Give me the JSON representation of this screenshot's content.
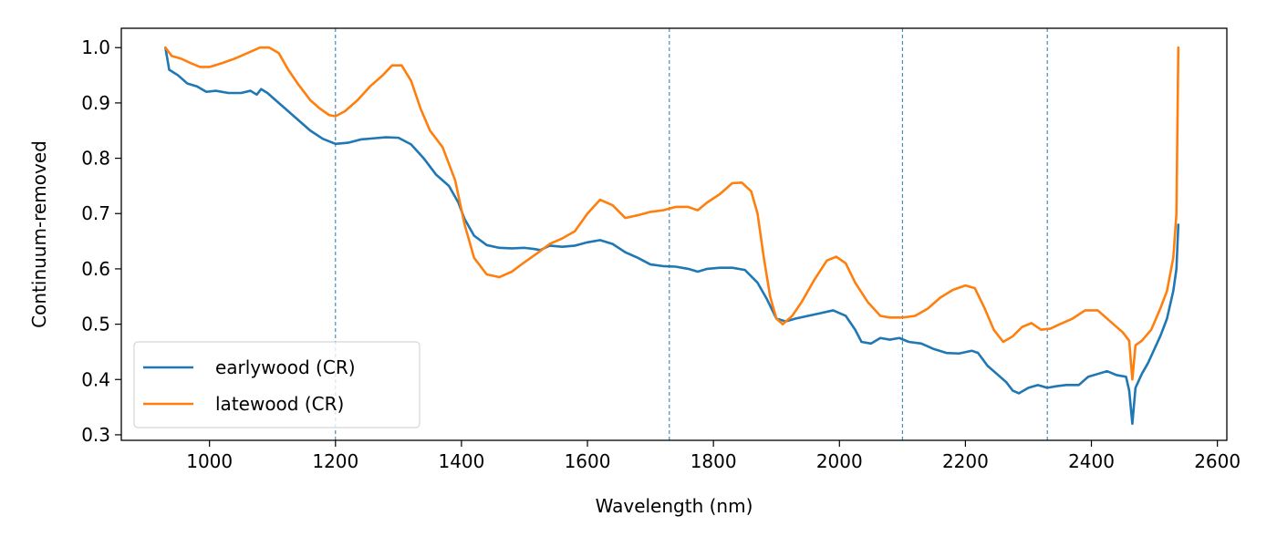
{
  "chart_data": {
    "type": "line",
    "title": "",
    "xlabel": "Wavelength (nm)",
    "ylabel": "Continuum-removed",
    "xlim": [
      860,
      2615
    ],
    "ylim": [
      0.29,
      1.035
    ],
    "xticks": [
      1000,
      1200,
      1400,
      1600,
      1800,
      2000,
      2200,
      2400,
      2600
    ],
    "yticks": [
      0.3,
      0.4,
      0.5,
      0.6,
      0.7,
      0.8,
      0.9,
      1.0
    ],
    "xtick_labels": [
      "1000",
      "1200",
      "1400",
      "1600",
      "1800",
      "2000",
      "2200",
      "2400",
      "2600"
    ],
    "ytick_labels": [
      "0.3",
      "0.4",
      "0.5",
      "0.6",
      "0.7",
      "0.8",
      "0.9",
      "1.0"
    ],
    "grid": false,
    "legend_position": "lower-left",
    "vlines": [
      1200,
      1730,
      2100,
      2330
    ],
    "series": [
      {
        "name": "earlywood (CR)",
        "color": "#1f77b4",
        "points": [
          [
            930,
            1.0
          ],
          [
            936,
            0.96
          ],
          [
            950,
            0.95
          ],
          [
            965,
            0.935
          ],
          [
            980,
            0.93
          ],
          [
            995,
            0.92
          ],
          [
            1010,
            0.922
          ],
          [
            1030,
            0.918
          ],
          [
            1050,
            0.918
          ],
          [
            1065,
            0.922
          ],
          [
            1075,
            0.915
          ],
          [
            1082,
            0.925
          ],
          [
            1092,
            0.918
          ],
          [
            1100,
            0.91
          ],
          [
            1120,
            0.89
          ],
          [
            1140,
            0.87
          ],
          [
            1160,
            0.85
          ],
          [
            1180,
            0.835
          ],
          [
            1200,
            0.826
          ],
          [
            1220,
            0.828
          ],
          [
            1240,
            0.834
          ],
          [
            1260,
            0.836
          ],
          [
            1280,
            0.838
          ],
          [
            1300,
            0.837
          ],
          [
            1320,
            0.825
          ],
          [
            1340,
            0.8
          ],
          [
            1360,
            0.77
          ],
          [
            1380,
            0.75
          ],
          [
            1395,
            0.72
          ],
          [
            1405,
            0.69
          ],
          [
            1420,
            0.66
          ],
          [
            1440,
            0.643
          ],
          [
            1460,
            0.638
          ],
          [
            1480,
            0.637
          ],
          [
            1500,
            0.638
          ],
          [
            1515,
            0.636
          ],
          [
            1525,
            0.634
          ],
          [
            1540,
            0.642
          ],
          [
            1560,
            0.64
          ],
          [
            1580,
            0.642
          ],
          [
            1600,
            0.648
          ],
          [
            1620,
            0.652
          ],
          [
            1640,
            0.645
          ],
          [
            1660,
            0.63
          ],
          [
            1680,
            0.62
          ],
          [
            1700,
            0.608
          ],
          [
            1720,
            0.605
          ],
          [
            1740,
            0.604
          ],
          [
            1760,
            0.6
          ],
          [
            1775,
            0.595
          ],
          [
            1790,
            0.6
          ],
          [
            1810,
            0.602
          ],
          [
            1830,
            0.602
          ],
          [
            1850,
            0.598
          ],
          [
            1870,
            0.575
          ],
          [
            1885,
            0.545
          ],
          [
            1900,
            0.51
          ],
          [
            1915,
            0.505
          ],
          [
            1930,
            0.51
          ],
          [
            1950,
            0.515
          ],
          [
            1970,
            0.52
          ],
          [
            1990,
            0.525
          ],
          [
            2010,
            0.515
          ],
          [
            2025,
            0.49
          ],
          [
            2035,
            0.468
          ],
          [
            2050,
            0.465
          ],
          [
            2065,
            0.475
          ],
          [
            2080,
            0.472
          ],
          [
            2095,
            0.475
          ],
          [
            2110,
            0.468
          ],
          [
            2130,
            0.465
          ],
          [
            2150,
            0.455
          ],
          [
            2170,
            0.448
          ],
          [
            2190,
            0.447
          ],
          [
            2210,
            0.452
          ],
          [
            2220,
            0.448
          ],
          [
            2235,
            0.425
          ],
          [
            2250,
            0.41
          ],
          [
            2265,
            0.395
          ],
          [
            2275,
            0.38
          ],
          [
            2285,
            0.375
          ],
          [
            2300,
            0.385
          ],
          [
            2315,
            0.39
          ],
          [
            2330,
            0.385
          ],
          [
            2345,
            0.388
          ],
          [
            2360,
            0.39
          ],
          [
            2380,
            0.39
          ],
          [
            2395,
            0.405
          ],
          [
            2410,
            0.41
          ],
          [
            2425,
            0.415
          ],
          [
            2440,
            0.408
          ],
          [
            2455,
            0.405
          ],
          [
            2460,
            0.38
          ],
          [
            2465,
            0.32
          ],
          [
            2470,
            0.385
          ],
          [
            2480,
            0.41
          ],
          [
            2490,
            0.43
          ],
          [
            2500,
            0.455
          ],
          [
            2510,
            0.48
          ],
          [
            2520,
            0.51
          ],
          [
            2530,
            0.56
          ],
          [
            2535,
            0.6
          ],
          [
            2538,
            0.68
          ]
        ]
      },
      {
        "name": "latewood (CR)",
        "color": "#ff7f0e",
        "points": [
          [
            930,
            1.0
          ],
          [
            940,
            0.985
          ],
          [
            955,
            0.98
          ],
          [
            970,
            0.972
          ],
          [
            985,
            0.965
          ],
          [
            1000,
            0.965
          ],
          [
            1020,
            0.972
          ],
          [
            1040,
            0.98
          ],
          [
            1060,
            0.99
          ],
          [
            1080,
            1.0
          ],
          [
            1095,
            1.0
          ],
          [
            1110,
            0.99
          ],
          [
            1125,
            0.96
          ],
          [
            1140,
            0.935
          ],
          [
            1160,
            0.905
          ],
          [
            1175,
            0.89
          ],
          [
            1190,
            0.878
          ],
          [
            1200,
            0.876
          ],
          [
            1215,
            0.885
          ],
          [
            1235,
            0.905
          ],
          [
            1255,
            0.93
          ],
          [
            1275,
            0.95
          ],
          [
            1290,
            0.968
          ],
          [
            1305,
            0.968
          ],
          [
            1320,
            0.94
          ],
          [
            1335,
            0.89
          ],
          [
            1350,
            0.85
          ],
          [
            1370,
            0.82
          ],
          [
            1390,
            0.76
          ],
          [
            1405,
            0.68
          ],
          [
            1420,
            0.62
          ],
          [
            1440,
            0.59
          ],
          [
            1460,
            0.585
          ],
          [
            1480,
            0.595
          ],
          [
            1500,
            0.612
          ],
          [
            1520,
            0.628
          ],
          [
            1540,
            0.645
          ],
          [
            1560,
            0.655
          ],
          [
            1580,
            0.668
          ],
          [
            1600,
            0.7
          ],
          [
            1620,
            0.725
          ],
          [
            1640,
            0.715
          ],
          [
            1660,
            0.692
          ],
          [
            1680,
            0.697
          ],
          [
            1700,
            0.703
          ],
          [
            1720,
            0.706
          ],
          [
            1740,
            0.712
          ],
          [
            1760,
            0.712
          ],
          [
            1775,
            0.706
          ],
          [
            1790,
            0.72
          ],
          [
            1810,
            0.735
          ],
          [
            1830,
            0.755
          ],
          [
            1845,
            0.756
          ],
          [
            1860,
            0.74
          ],
          [
            1870,
            0.7
          ],
          [
            1880,
            0.62
          ],
          [
            1890,
            0.55
          ],
          [
            1900,
            0.51
          ],
          [
            1910,
            0.5
          ],
          [
            1925,
            0.515
          ],
          [
            1940,
            0.54
          ],
          [
            1960,
            0.58
          ],
          [
            1980,
            0.615
          ],
          [
            1995,
            0.622
          ],
          [
            2010,
            0.61
          ],
          [
            2025,
            0.575
          ],
          [
            2045,
            0.54
          ],
          [
            2065,
            0.515
          ],
          [
            2080,
            0.512
          ],
          [
            2100,
            0.512
          ],
          [
            2120,
            0.515
          ],
          [
            2140,
            0.528
          ],
          [
            2160,
            0.548
          ],
          [
            2180,
            0.562
          ],
          [
            2200,
            0.57
          ],
          [
            2215,
            0.565
          ],
          [
            2230,
            0.53
          ],
          [
            2245,
            0.49
          ],
          [
            2260,
            0.468
          ],
          [
            2275,
            0.478
          ],
          [
            2290,
            0.495
          ],
          [
            2305,
            0.502
          ],
          [
            2320,
            0.49
          ],
          [
            2335,
            0.492
          ],
          [
            2350,
            0.5
          ],
          [
            2370,
            0.51
          ],
          [
            2390,
            0.525
          ],
          [
            2410,
            0.525
          ],
          [
            2430,
            0.505
          ],
          [
            2450,
            0.485
          ],
          [
            2460,
            0.47
          ],
          [
            2465,
            0.4
          ],
          [
            2470,
            0.462
          ],
          [
            2480,
            0.47
          ],
          [
            2495,
            0.49
          ],
          [
            2510,
            0.53
          ],
          [
            2520,
            0.56
          ],
          [
            2530,
            0.62
          ],
          [
            2535,
            0.7
          ],
          [
            2538,
            1.0
          ]
        ]
      }
    ]
  }
}
